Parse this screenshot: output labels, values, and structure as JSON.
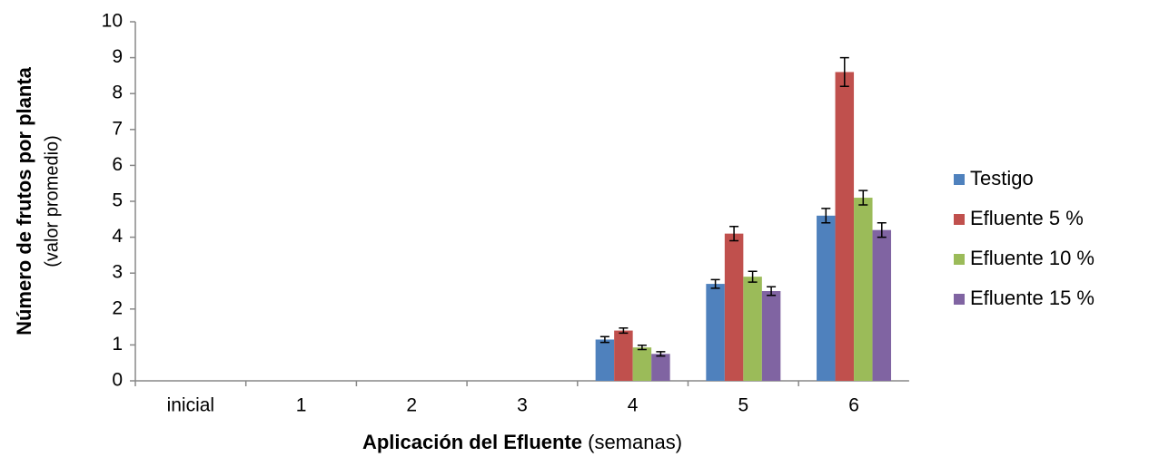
{
  "chart_data": {
    "type": "bar",
    "ylabel": "Número de frutos por planta",
    "ylabel_note": "(valor promedio)",
    "xlabel": "Aplicación del Efluente",
    "xlabel_note": "(semanas)",
    "categories": [
      "inicial",
      "1",
      "2",
      "3",
      "4",
      "5",
      "6"
    ],
    "series": [
      {
        "name": "Testigo",
        "color": "#4f81bd",
        "values": [
          0,
          0,
          0,
          0,
          1.15,
          2.7,
          4.6
        ],
        "errors": [
          0,
          0,
          0,
          0,
          0.08,
          0.12,
          0.2
        ]
      },
      {
        "name": "Efluente 5 %",
        "color": "#c0504d",
        "values": [
          0,
          0,
          0,
          0,
          1.4,
          4.1,
          8.6
        ],
        "errors": [
          0,
          0,
          0,
          0,
          0.07,
          0.2,
          0.4
        ]
      },
      {
        "name": "Efluente 10 %",
        "color": "#9bbb59",
        "values": [
          0,
          0,
          0,
          0,
          0.93,
          2.9,
          5.1
        ],
        "errors": [
          0,
          0,
          0,
          0,
          0.06,
          0.15,
          0.2
        ]
      },
      {
        "name": "Efluente 15 %",
        "color": "#8064a2",
        "values": [
          0,
          0,
          0,
          0,
          0.75,
          2.5,
          4.2
        ],
        "errors": [
          0,
          0,
          0,
          0,
          0.06,
          0.12,
          0.2
        ]
      }
    ],
    "ylim": [
      0,
      10
    ],
    "yticks": [
      0,
      1,
      2,
      3,
      4,
      5,
      6,
      7,
      8,
      9,
      10
    ],
    "legend": "right"
  }
}
